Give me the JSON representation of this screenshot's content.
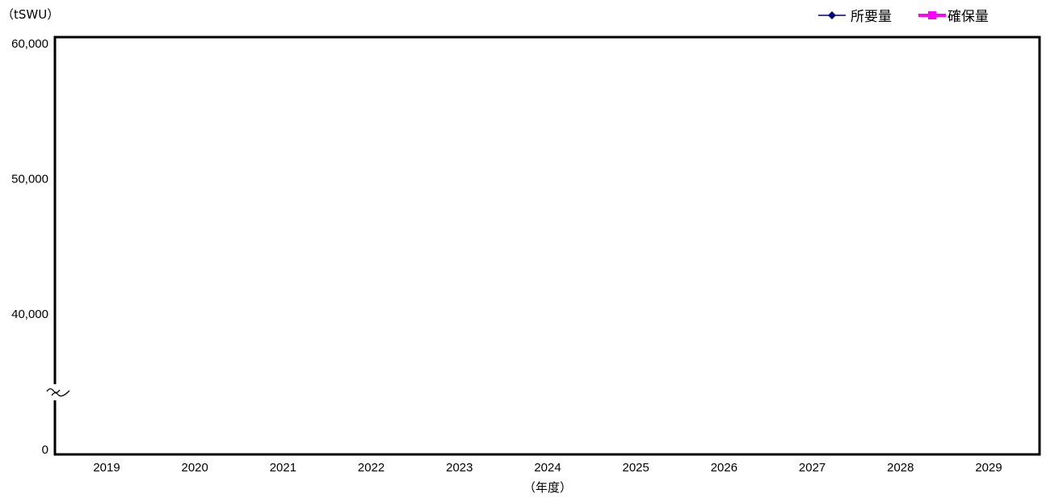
{
  "chart_data": {
    "type": "line",
    "title": "",
    "ylabel": "（tSWU）",
    "xlabel": "（年度）",
    "categories": [
      "2019",
      "2020",
      "2021",
      "2022",
      "2023",
      "2024",
      "2025",
      "2026",
      "2027",
      "2028",
      "2029"
    ],
    "y_ticks": [
      {
        "label": "60,000",
        "value": 60000
      },
      {
        "label": "50,000",
        "value": 50000
      },
      {
        "label": "40,000",
        "value": 40000
      },
      {
        "label": "0",
        "value": 0
      }
    ],
    "ylim": [
      0,
      60000
    ],
    "y_axis_break": true,
    "grid": false,
    "legend_position": "top-right",
    "series": [
      {
        "name": "所要量",
        "color": "#000080",
        "marker": "diamond",
        "values": [
          null,
          null,
          null,
          null,
          null,
          null,
          null,
          null,
          null,
          null,
          null
        ]
      },
      {
        "name": "確保量",
        "color": "#ff00ff",
        "marker": "square",
        "values": [
          null,
          null,
          null,
          null,
          null,
          null,
          null,
          null,
          null,
          null,
          null
        ]
      }
    ]
  }
}
